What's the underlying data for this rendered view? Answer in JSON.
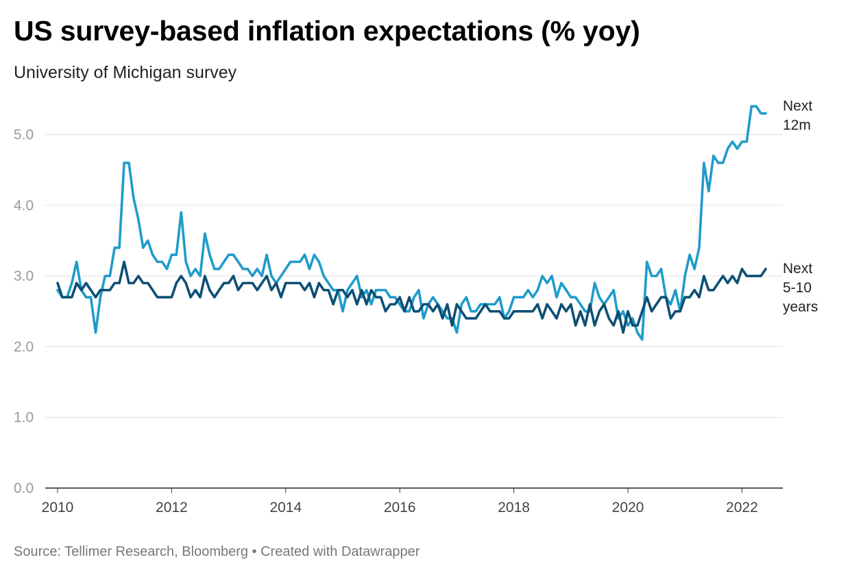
{
  "title": "US survey-based inflation expectations (% yoy)",
  "subtitle": "University of Michigan survey",
  "footer": "Source: Tellimer Research, Bloomberg • Created with Datawrapper",
  "chart_data": {
    "type": "line",
    "title": "US survey-based inflation expectations (% yoy)",
    "subtitle": "University of Michigan survey",
    "xlabel": "",
    "ylabel": "",
    "xlim": [
      2010.0,
      2022.6
    ],
    "ylim": [
      0,
      5.5
    ],
    "x_ticks": [
      "2010",
      "2012",
      "2014",
      "2016",
      "2018",
      "2020",
      "2022"
    ],
    "y_ticks": [
      "0.0",
      "1.0",
      "2.0",
      "3.0",
      "4.0",
      "5.0"
    ],
    "grid": true,
    "start": "2010-01",
    "frequency": "monthly",
    "series": [
      {
        "name": "Next 12m",
        "line_label": [
          "Next",
          "12m"
        ],
        "color": "#1f9bcb",
        "values": [
          2.8,
          2.7,
          2.7,
          2.9,
          3.2,
          2.8,
          2.7,
          2.7,
          2.2,
          2.7,
          3.0,
          3.0,
          3.4,
          3.4,
          4.6,
          4.6,
          4.1,
          3.8,
          3.4,
          3.5,
          3.3,
          3.2,
          3.2,
          3.1,
          3.3,
          3.3,
          3.9,
          3.2,
          3.0,
          3.1,
          3.0,
          3.6,
          3.3,
          3.1,
          3.1,
          3.2,
          3.3,
          3.3,
          3.2,
          3.1,
          3.1,
          3.0,
          3.1,
          3.0,
          3.3,
          3.0,
          2.9,
          3.0,
          3.1,
          3.2,
          3.2,
          3.2,
          3.3,
          3.1,
          3.3,
          3.2,
          3.0,
          2.9,
          2.8,
          2.8,
          2.5,
          2.8,
          2.9,
          3.0,
          2.7,
          2.8,
          2.6,
          2.8,
          2.8,
          2.8,
          2.7,
          2.7,
          2.6,
          2.5,
          2.5,
          2.7,
          2.8,
          2.4,
          2.6,
          2.7,
          2.6,
          2.5,
          2.4,
          2.4,
          2.2,
          2.6,
          2.7,
          2.5,
          2.5,
          2.6,
          2.6,
          2.6,
          2.6,
          2.7,
          2.4,
          2.5,
          2.7,
          2.7,
          2.7,
          2.8,
          2.7,
          2.8,
          3.0,
          2.9,
          3.0,
          2.7,
          2.9,
          2.8,
          2.7,
          2.7,
          2.6,
          2.5,
          2.5,
          2.9,
          2.7,
          2.6,
          2.7,
          2.8,
          2.4,
          2.5,
          2.3,
          2.4,
          2.2,
          2.1,
          3.2,
          3.0,
          3.0,
          3.1,
          2.7,
          2.6,
          2.8,
          2.5,
          3.0,
          3.3,
          3.1,
          3.4,
          4.6,
          4.2,
          4.7,
          4.6,
          4.6,
          4.8,
          4.9,
          4.8,
          4.9,
          4.9,
          5.4,
          5.4,
          5.3,
          5.3
        ]
      },
      {
        "name": "Next 5-10 years",
        "line_label": [
          "Next",
          "5-10",
          "years"
        ],
        "color": "#0d4f73",
        "values": [
          2.9,
          2.7,
          2.7,
          2.7,
          2.9,
          2.8,
          2.9,
          2.8,
          2.7,
          2.8,
          2.8,
          2.8,
          2.9,
          2.9,
          3.2,
          2.9,
          2.9,
          3.0,
          2.9,
          2.9,
          2.8,
          2.7,
          2.7,
          2.7,
          2.7,
          2.9,
          3.0,
          2.9,
          2.7,
          2.8,
          2.7,
          3.0,
          2.8,
          2.7,
          2.8,
          2.9,
          2.9,
          3.0,
          2.8,
          2.9,
          2.9,
          2.9,
          2.8,
          2.9,
          3.0,
          2.8,
          2.9,
          2.7,
          2.9,
          2.9,
          2.9,
          2.9,
          2.8,
          2.9,
          2.7,
          2.9,
          2.8,
          2.8,
          2.6,
          2.8,
          2.8,
          2.7,
          2.8,
          2.6,
          2.8,
          2.6,
          2.8,
          2.7,
          2.7,
          2.5,
          2.6,
          2.6,
          2.7,
          2.5,
          2.7,
          2.5,
          2.5,
          2.6,
          2.6,
          2.5,
          2.6,
          2.4,
          2.6,
          2.3,
          2.6,
          2.5,
          2.4,
          2.4,
          2.4,
          2.5,
          2.6,
          2.5,
          2.5,
          2.5,
          2.4,
          2.4,
          2.5,
          2.5,
          2.5,
          2.5,
          2.5,
          2.6,
          2.4,
          2.6,
          2.5,
          2.4,
          2.6,
          2.5,
          2.6,
          2.3,
          2.5,
          2.3,
          2.6,
          2.3,
          2.5,
          2.6,
          2.4,
          2.3,
          2.5,
          2.2,
          2.5,
          2.3,
          2.3,
          2.5,
          2.7,
          2.5,
          2.6,
          2.7,
          2.7,
          2.4,
          2.5,
          2.5,
          2.7,
          2.7,
          2.8,
          2.7,
          3.0,
          2.8,
          2.8,
          2.9,
          3.0,
          2.9,
          3.0,
          2.9,
          3.1,
          3.0,
          3.0,
          3.0,
          3.0,
          3.1
        ]
      }
    ]
  }
}
